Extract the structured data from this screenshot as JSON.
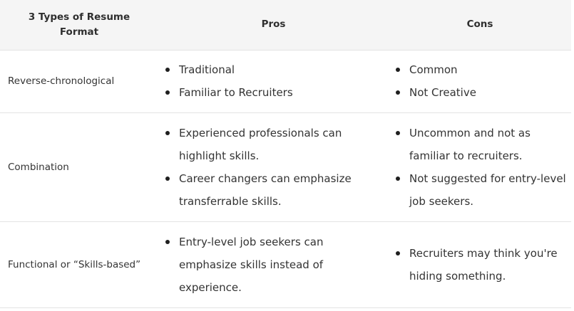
{
  "table": {
    "headers": {
      "type": "3 Types of Resume Format",
      "pros": "Pros",
      "cons": "Cons"
    },
    "rows": [
      {
        "type": "Reverse-chronological",
        "pros": [
          "Traditional",
          "Familiar to Recruiters"
        ],
        "cons": [
          "Common",
          "Not Creative"
        ]
      },
      {
        "type": "Combination",
        "pros": [
          "Experienced professionals can highlight skills.",
          "Career changers can emphasize transferrable skills."
        ],
        "cons": [
          "Uncommon and not as familiar to recruiters.",
          "Not suggested for entry-level job seekers."
        ]
      },
      {
        "type": "Functional or “Skills-based”",
        "pros": [
          "Entry-level job seekers can emphasize skills instead of experience."
        ],
        "cons": [
          "Recruiters may think you're hiding something."
        ]
      }
    ]
  },
  "colors": {
    "header_bg": "#f5f5f5",
    "border": "#e3e3e3",
    "text": "#333333",
    "bullet": "#1f1f1f"
  },
  "icons": {
    "bullet": "filled-circle-bullet-icon"
  }
}
